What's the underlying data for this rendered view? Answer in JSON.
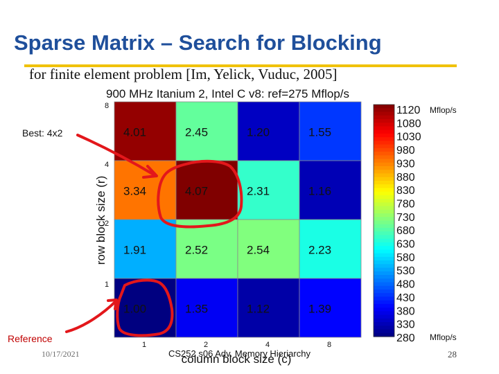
{
  "slide": {
    "title": "Sparse Matrix – Search for Blocking",
    "subtitle": "for finite element problem [Im, Yelick, Vuduc, 2005]",
    "best_label": "Best: 4x2",
    "reference_label": "Reference",
    "date": "10/17/2021",
    "footer": "CS252 s06 Adv. Memory Hieriarchy",
    "page_number": "28"
  },
  "colors": {
    "title": "#1f4f9b",
    "rule": "#f0c20a",
    "annotation": "#e3171b"
  },
  "chart_data": {
    "type": "heatmap",
    "title": "900 MHz Itanium 2, Intel C v8: ref=275 Mflop/s",
    "xlabel": "column block size (c)",
    "ylabel": "row block size (r)",
    "x_categories": [
      "1",
      "2",
      "4",
      "8"
    ],
    "y_categories": [
      "8",
      "4",
      "2",
      "1"
    ],
    "values": [
      [
        4.01,
        2.45,
        1.2,
        1.55
      ],
      [
        3.34,
        4.07,
        2.31,
        1.16
      ],
      [
        1.91,
        2.52,
        2.54,
        2.23
      ],
      [
        1.0,
        1.35,
        1.12,
        1.39
      ]
    ],
    "value_labels": [
      [
        "4.01",
        "2.45",
        "1.20",
        "1.55"
      ],
      [
        "3.34",
        "4.07",
        "2.31",
        "1.16"
      ],
      [
        "1.91",
        "2.52",
        "2.54",
        "2.23"
      ],
      [
        "1.00",
        "1.35",
        "1.12",
        "1.39"
      ]
    ],
    "reference_mflops": 275,
    "colorbar": {
      "ticks": [
        "1120",
        "1080",
        "1030",
        "980",
        "930",
        "880",
        "830",
        "780",
        "730",
        "680",
        "630",
        "580",
        "530",
        "480",
        "430",
        "380",
        "330",
        "280"
      ],
      "range": [
        275,
        1120
      ],
      "unit_top": "Mflop/s",
      "unit_bottom": "Mflop/s",
      "colormap": "jet"
    }
  }
}
